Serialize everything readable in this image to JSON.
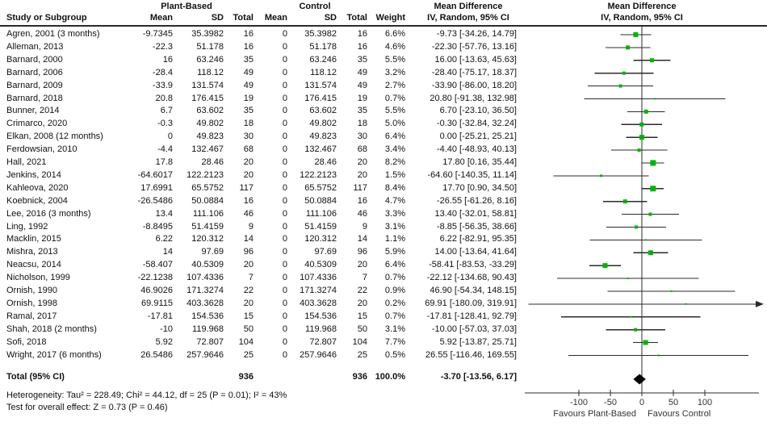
{
  "header": {
    "study_col": "Study or Subgroup",
    "group_experimental": "Plant-Based",
    "group_control": "Control",
    "mean": "Mean",
    "sd": "SD",
    "total": "Total",
    "weight": "Weight",
    "md_title": "Mean Difference",
    "md_sub": "IV, Random, 95% CI",
    "plot_title": "Mean Difference",
    "plot_sub": "IV, Random, 95% CI"
  },
  "chart_data": {
    "type": "forest",
    "effect_measure": "Mean Difference, IV, Random, 95% CI",
    "marker_color": "#00b400",
    "line_color": "#2b2b2b",
    "diamond_color": "#000000",
    "axis": {
      "ticks": [
        -100,
        -50,
        0,
        50,
        100
      ],
      "xmin": -186,
      "xmax": 186,
      "label_left": "Favours Plant-Based",
      "label_right": "Favours Control"
    },
    "studies": [
      {
        "name": "Agren, 2001 (3 months)",
        "pb_mean": "-9.7345",
        "pb_sd": "35.3982",
        "pb_total": "16",
        "c_mean": "0",
        "c_sd": "35.3982",
        "c_total": "16",
        "weight_label": "6.6%",
        "weight": 6.6,
        "md_label": "-9.73 [-34.26, 14.79]",
        "est": -9.73,
        "lo": -34.26,
        "hi": 14.79
      },
      {
        "name": "Alleman, 2013",
        "pb_mean": "-22.3",
        "pb_sd": "51.178",
        "pb_total": "16",
        "c_mean": "0",
        "c_sd": "51.178",
        "c_total": "16",
        "weight_label": "4.6%",
        "weight": 4.6,
        "md_label": "-22.30 [-57.76, 13.16]",
        "est": -22.3,
        "lo": -57.76,
        "hi": 13.16
      },
      {
        "name": "Barnard, 2000",
        "pb_mean": "16",
        "pb_sd": "63.246",
        "pb_total": "35",
        "c_mean": "0",
        "c_sd": "63.246",
        "c_total": "35",
        "weight_label": "5.5%",
        "weight": 5.5,
        "md_label": "16.00 [-13.63, 45.63]",
        "est": 16.0,
        "lo": -13.63,
        "hi": 45.63
      },
      {
        "name": "Barnard, 2006",
        "pb_mean": "-28.4",
        "pb_sd": "118.12",
        "pb_total": "49",
        "c_mean": "0",
        "c_sd": "118.12",
        "c_total": "49",
        "weight_label": "3.2%",
        "weight": 3.2,
        "md_label": "-28.40 [-75.17, 18.37]",
        "est": -28.4,
        "lo": -75.17,
        "hi": 18.37
      },
      {
        "name": "Barnard, 2009",
        "pb_mean": "-33.9",
        "pb_sd": "131.574",
        "pb_total": "49",
        "c_mean": "0",
        "c_sd": "131.574",
        "c_total": "49",
        "weight_label": "2.7%",
        "weight": 2.7,
        "md_label": "-33.90 [-86.00, 18.20]",
        "est": -33.9,
        "lo": -86.0,
        "hi": 18.2
      },
      {
        "name": "Barnard, 2018",
        "pb_mean": "20.8",
        "pb_sd": "176.415",
        "pb_total": "19",
        "c_mean": "0",
        "c_sd": "176.415",
        "c_total": "19",
        "weight_label": "0.7%",
        "weight": 0.7,
        "md_label": "20.80 [-91.38, 132.98]",
        "est": 20.8,
        "lo": -91.38,
        "hi": 132.98
      },
      {
        "name": "Bunner, 2014",
        "pb_mean": "6.7",
        "pb_sd": "63.602",
        "pb_total": "35",
        "c_mean": "0",
        "c_sd": "63.602",
        "c_total": "35",
        "weight_label": "5.5%",
        "weight": 5.5,
        "md_label": "6.70 [-23.10, 36.50]",
        "est": 6.7,
        "lo": -23.1,
        "hi": 36.5
      },
      {
        "name": "Crimarco, 2020",
        "pb_mean": "-0.3",
        "pb_sd": "49.802",
        "pb_total": "18",
        "c_mean": "0",
        "c_sd": "49.802",
        "c_total": "18",
        "weight_label": "5.0%",
        "weight": 5.0,
        "md_label": "-0.30 [-32.84, 32.24]",
        "est": -0.3,
        "lo": -32.84,
        "hi": 32.24
      },
      {
        "name": "Elkan, 2008 (12 months)",
        "pb_mean": "0",
        "pb_sd": "49.823",
        "pb_total": "30",
        "c_mean": "0",
        "c_sd": "49.823",
        "c_total": "30",
        "weight_label": "6.4%",
        "weight": 6.4,
        "md_label": "0.00 [-25.21, 25.21]",
        "est": 0.0,
        "lo": -25.21,
        "hi": 25.21
      },
      {
        "name": "Ferdowsian, 2010",
        "pb_mean": "-4.4",
        "pb_sd": "132.467",
        "pb_total": "68",
        "c_mean": "0",
        "c_sd": "132.467",
        "c_total": "68",
        "weight_label": "3.4%",
        "weight": 3.4,
        "md_label": "-4.40 [-48.93, 40.13]",
        "est": -4.4,
        "lo": -48.93,
        "hi": 40.13
      },
      {
        "name": "Hall, 2021",
        "pb_mean": "17.8",
        "pb_sd": "28.46",
        "pb_total": "20",
        "c_mean": "0",
        "c_sd": "28.46",
        "c_total": "20",
        "weight_label": "8.2%",
        "weight": 8.2,
        "md_label": "17.80 [0.16, 35.44]",
        "est": 17.8,
        "lo": 0.16,
        "hi": 35.44
      },
      {
        "name": "Jenkins, 2014",
        "pb_mean": "-64.6017",
        "pb_sd": "122.2123",
        "pb_total": "20",
        "c_mean": "0",
        "c_sd": "122.2123",
        "c_total": "20",
        "weight_label": "1.5%",
        "weight": 1.5,
        "md_label": "-64.60 [-140.35, 11.14]",
        "est": -64.6,
        "lo": -140.35,
        "hi": 11.14
      },
      {
        "name": "Kahleova, 2020",
        "pb_mean": "17.6991",
        "pb_sd": "65.5752",
        "pb_total": "117",
        "c_mean": "0",
        "c_sd": "65.5752",
        "c_total": "117",
        "weight_label": "8.4%",
        "weight": 8.4,
        "md_label": "17.70 [0.90, 34.50]",
        "est": 17.7,
        "lo": 0.9,
        "hi": 34.5
      },
      {
        "name": "Koebnick, 2004",
        "pb_mean": "-26.5486",
        "pb_sd": "50.0884",
        "pb_total": "16",
        "c_mean": "0",
        "c_sd": "50.0884",
        "c_total": "16",
        "weight_label": "4.7%",
        "weight": 4.7,
        "md_label": "-26.55 [-61.26, 8.16]",
        "est": -26.55,
        "lo": -61.26,
        "hi": 8.16
      },
      {
        "name": "Lee, 2016 (3 months)",
        "pb_mean": "13.4",
        "pb_sd": "111.106",
        "pb_total": "46",
        "c_mean": "0",
        "c_sd": "111.106",
        "c_total": "46",
        "weight_label": "3.3%",
        "weight": 3.3,
        "md_label": "13.40 [-32.01, 58.81]",
        "est": 13.4,
        "lo": -32.01,
        "hi": 58.81
      },
      {
        "name": "Ling, 1992",
        "pb_mean": "-8.8495",
        "pb_sd": "51.4159",
        "pb_total": "9",
        "c_mean": "0",
        "c_sd": "51.4159",
        "c_total": "9",
        "weight_label": "3.1%",
        "weight": 3.1,
        "md_label": "-8.85 [-56.35, 38.66]",
        "est": -8.85,
        "lo": -56.35,
        "hi": 38.66
      },
      {
        "name": "Macklin, 2015",
        "pb_mean": "6.22",
        "pb_sd": "120.312",
        "pb_total": "14",
        "c_mean": "0",
        "c_sd": "120.312",
        "c_total": "14",
        "weight_label": "1.1%",
        "weight": 1.1,
        "md_label": "6.22 [-82.91, 95.35]",
        "est": 6.22,
        "lo": -82.91,
        "hi": 95.35
      },
      {
        "name": "Mishra, 2013",
        "pb_mean": "14",
        "pb_sd": "97.69",
        "pb_total": "96",
        "c_mean": "0",
        "c_sd": "97.69",
        "c_total": "96",
        "weight_label": "5.9%",
        "weight": 5.9,
        "md_label": "14.00 [-13.64, 41.64]",
        "est": 14.0,
        "lo": -13.64,
        "hi": 41.64
      },
      {
        "name": "Neacsu, 2014",
        "pb_mean": "-58.407",
        "pb_sd": "40.5309",
        "pb_total": "20",
        "c_mean": "0",
        "c_sd": "40.5309",
        "c_total": "20",
        "weight_label": "6.4%",
        "weight": 6.4,
        "md_label": "-58.41 [-83.53, -33.29]",
        "est": -58.41,
        "lo": -83.53,
        "hi": -33.29
      },
      {
        "name": "Nicholson, 1999",
        "pb_mean": "-22.1238",
        "pb_sd": "107.4336",
        "pb_total": "7",
        "c_mean": "0",
        "c_sd": "107.4336",
        "c_total": "7",
        "weight_label": "0.7%",
        "weight": 0.7,
        "md_label": "-22.12 [-134.68, 90.43]",
        "est": -22.12,
        "lo": -134.68,
        "hi": 90.43
      },
      {
        "name": "Ornish, 1990",
        "pb_mean": "46.9026",
        "pb_sd": "171.3274",
        "pb_total": "22",
        "c_mean": "0",
        "c_sd": "171.3274",
        "c_total": "22",
        "weight_label": "0.9%",
        "weight": 0.9,
        "md_label": "46.90 [-54.34, 148.15]",
        "est": 46.9,
        "lo": -54.34,
        "hi": 148.15
      },
      {
        "name": "Ornish, 1998",
        "pb_mean": "69.9115",
        "pb_sd": "403.3628",
        "pb_total": "20",
        "c_mean": "0",
        "c_sd": "403.3628",
        "c_total": "20",
        "weight_label": "0.2%",
        "weight": 0.2,
        "md_label": "69.91 [-180.09, 319.91]",
        "est": 69.91,
        "lo": -180.09,
        "hi": 319.91
      },
      {
        "name": "Ramal, 2017",
        "pb_mean": "-17.81",
        "pb_sd": "154.536",
        "pb_total": "15",
        "c_mean": "0",
        "c_sd": "154.536",
        "c_total": "15",
        "weight_label": "0.7%",
        "weight": 0.7,
        "md_label": "-17.81 [-128.41, 92.79]",
        "est": -17.81,
        "lo": -128.41,
        "hi": 92.79
      },
      {
        "name": "Shah, 2018 (2 months)",
        "pb_mean": "-10",
        "pb_sd": "119.968",
        "pb_total": "50",
        "c_mean": "0",
        "c_sd": "119.968",
        "c_total": "50",
        "weight_label": "3.1%",
        "weight": 3.1,
        "md_label": "-10.00 [-57.03, 37.03]",
        "est": -10.0,
        "lo": -57.03,
        "hi": 37.03
      },
      {
        "name": "Sofi, 2018",
        "pb_mean": "5.92",
        "pb_sd": "72.807",
        "pb_total": "104",
        "c_mean": "0",
        "c_sd": "72.807",
        "c_total": "104",
        "weight_label": "7.7%",
        "weight": 7.7,
        "md_label": "5.92 [-13.87, 25.71]",
        "est": 5.92,
        "lo": -13.87,
        "hi": 25.71
      },
      {
        "name": "Wright, 2017 (6 months)",
        "pb_mean": "26.5486",
        "pb_sd": "257.9646",
        "pb_total": "25",
        "c_mean": "0",
        "c_sd": "257.9646",
        "c_total": "25",
        "weight_label": "0.5%",
        "weight": 0.5,
        "md_label": "26.55 [-116.46, 169.55]",
        "est": 26.55,
        "lo": -116.46,
        "hi": 169.55
      }
    ],
    "total": {
      "label": "Total (95% CI)",
      "pb_total": "936",
      "c_total": "936",
      "weight_label": "100.0%",
      "md_label": "-3.70 [-13.56, 6.17]",
      "est": -3.7,
      "lo": -13.56,
      "hi": 6.17
    },
    "footnotes": {
      "heterogeneity": "Heterogeneity: Tau² = 228.49; Chi² = 44.12, df = 25 (P = 0.01); I² = 43%",
      "overall_effect": "Test for overall effect: Z = 0.73 (P = 0.46)"
    }
  }
}
